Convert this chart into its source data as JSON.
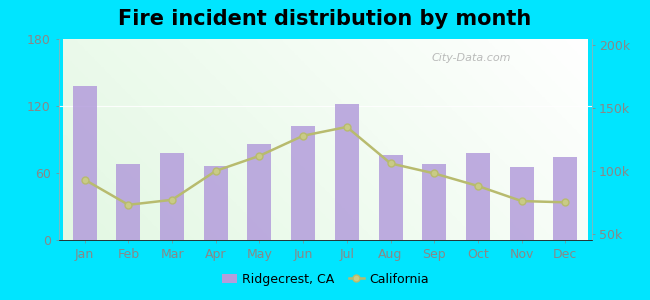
{
  "title": "Fire incident distribution by month",
  "months": [
    "Jan",
    "Feb",
    "Mar",
    "Apr",
    "May",
    "Jun",
    "Jul",
    "Aug",
    "Sep",
    "Oct",
    "Nov",
    "Dec"
  ],
  "ridgecrest_values": [
    138,
    68,
    78,
    66,
    86,
    102,
    122,
    76,
    68,
    78,
    65,
    74
  ],
  "california_values": [
    93000,
    73000,
    77000,
    100000,
    112000,
    128000,
    135000,
    106000,
    98000,
    88000,
    76000,
    75000
  ],
  "bar_color": "#b39ddb",
  "line_color": "#b8bb6e",
  "line_marker_color": "#c9cb85",
  "background_color": "#00e5ff",
  "left_ylim": [
    0,
    180
  ],
  "left_yticks": [
    0,
    60,
    120,
    180
  ],
  "right_ylim": [
    45000,
    205000
  ],
  "right_yticks": [
    50000,
    100000,
    150000,
    200000
  ],
  "right_yticklabels": [
    "50k",
    "100k",
    "150k",
    "200k"
  ],
  "legend_ridgecrest": "Ridgecrest, CA",
  "legend_california": "California",
  "watermark": "City-Data.com",
  "title_fontsize": 15
}
